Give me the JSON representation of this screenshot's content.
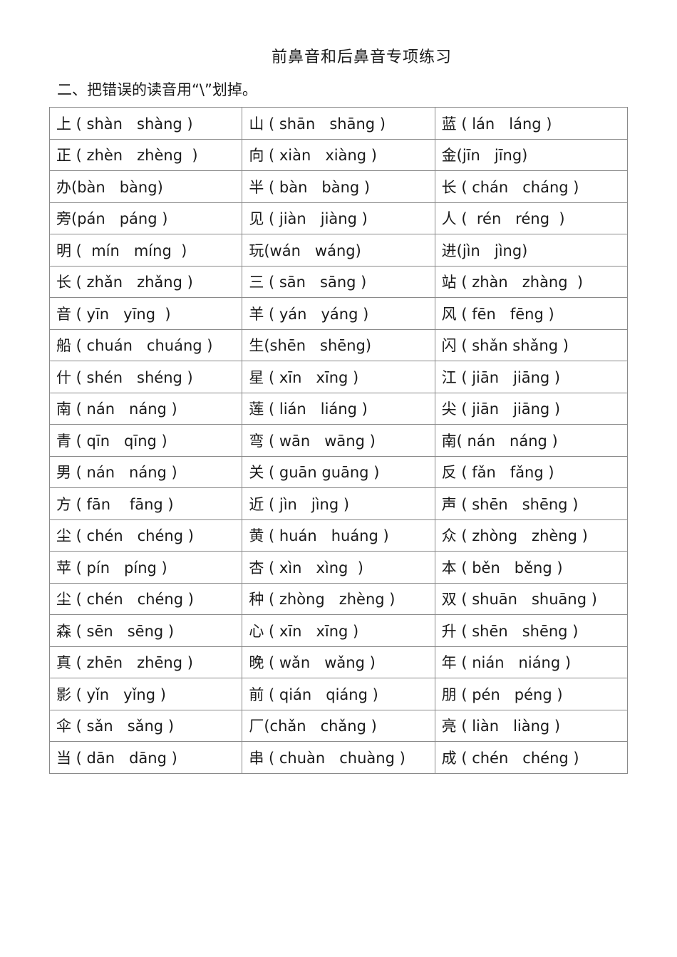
{
  "title": "前鼻音和后鼻音专项练习",
  "instruction": "二、把错误的读音用“\\”划掉。",
  "rows": [
    [
      "上 ( shàn   shàng )",
      "山 ( shān   shāng )",
      "蓝 ( lán   láng )"
    ],
    [
      "正 ( zhèn   zhèng  )",
      "向 ( xiàn   xiàng )",
      "金(jīn   jīng)"
    ],
    [
      "办(bàn   bàng)",
      "半 ( bàn   bàng )",
      "长 ( chán   cháng )"
    ],
    [
      "旁(pán   páng )",
      "见 ( jiàn   jiàng )",
      "人 (  rén   réng  )"
    ],
    [
      "明 (  mín   míng  )",
      "玩(wán   wáng)",
      "进(jìn   jìng)"
    ],
    [
      "长 ( zhǎn   zhǎng )",
      "三 ( sān   sāng )",
      "站 ( zhàn   zhàng  )"
    ],
    [
      "音 ( yīn   yīng  )",
      "羊 ( yán   yáng )",
      "风 ( fēn   fēng )"
    ],
    [
      "船 ( chuán   chuáng )",
      "生(shēn   shēng)",
      "闪 ( shǎn shǎng )"
    ],
    [
      "什 ( shén   shéng )",
      "星 ( xīn   xīng )",
      "江 ( jiān   jiāng )"
    ],
    [
      "南 ( nán   náng )",
      "莲 ( lián   liáng )",
      "尖 ( jiān   jiāng )"
    ],
    [
      "青 ( qīn   qīng )",
      "弯 ( wān   wāng )",
      "南( nán   náng )"
    ],
    [
      "男 ( nán   náng )",
      "关 ( guān guāng )",
      "反 ( fǎn   fǎng )"
    ],
    [
      "方 ( fān    fāng )",
      "近 ( jìn   jìng )",
      "声 ( shēn   shēng )"
    ],
    [
      "尘 ( chén   chéng )",
      "黄 ( huán   huáng )",
      "众 ( zhòng   zhèng )"
    ],
    [
      "苹 ( pín   píng )",
      "杏 ( xìn   xìng  )",
      "本 ( běn   běng )"
    ],
    [
      "尘 ( chén   chéng )",
      "种 ( zhòng   zhèng )",
      "双 ( shuān   shuāng )"
    ],
    [
      "森 ( sēn   sēng )",
      "心 ( xīn   xīng )",
      "升 ( shēn   shēng )"
    ],
    [
      "真 ( zhēn   zhēng )",
      "晚 ( wǎn   wǎng )",
      "年 ( nián   niáng )"
    ],
    [
      "影 ( yǐn   yǐng )",
      "前 ( qián   qiáng )",
      "朋 ( pén   péng )"
    ],
    [
      "伞 ( sǎn   sǎng )",
      "厂(chǎn   chǎng )",
      "亮 ( liàn   liàng )"
    ],
    [
      "当 ( dān   dāng )",
      "串 ( chuàn   chuàng )",
      "成 ( chén   chéng )"
    ]
  ]
}
